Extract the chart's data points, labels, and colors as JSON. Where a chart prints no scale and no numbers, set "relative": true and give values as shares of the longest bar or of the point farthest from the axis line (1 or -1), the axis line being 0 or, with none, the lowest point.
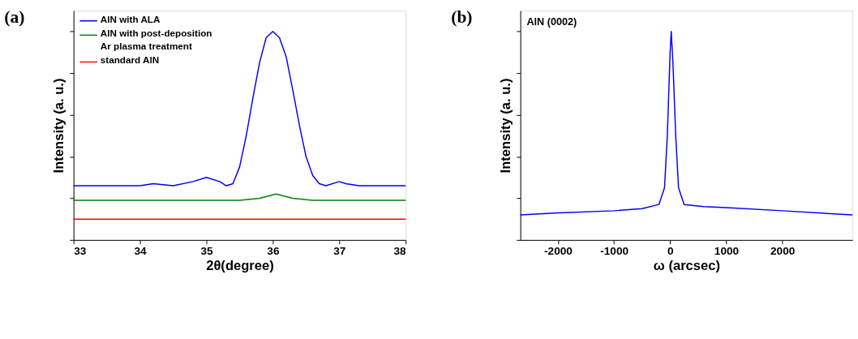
{
  "chart_data": [
    {
      "type": "line",
      "title": "(a)",
      "xlabel": "2θ(degree)",
      "ylabel": "Intensity (a. u.)",
      "relative": true,
      "tick_labels": "x",
      "grid": false,
      "legend": "top left",
      "xlim": [
        33,
        38
      ],
      "xticks": [
        33,
        34,
        35,
        36,
        37,
        38
      ],
      "series": [
        {
          "name": "AlN with ALA",
          "color": "#0000ff",
          "x": [
            33,
            34,
            34.2,
            34.5,
            34.8,
            35,
            35.2,
            35.3,
            35.4,
            35.5,
            35.6,
            35.7,
            35.8,
            35.9,
            36,
            36.1,
            36.2,
            36.3,
            36.4,
            36.5,
            36.6,
            36.7,
            36.8,
            37,
            37.1,
            37.3,
            38
          ],
          "values": [
            0.26,
            0.26,
            0.27,
            0.26,
            0.28,
            0.3,
            0.28,
            0.26,
            0.27,
            0.35,
            0.5,
            0.68,
            0.85,
            0.97,
            1.0,
            0.97,
            0.88,
            0.72,
            0.55,
            0.4,
            0.31,
            0.27,
            0.26,
            0.28,
            0.27,
            0.26,
            0.26
          ]
        },
        {
          "name": "AlN with post-deposition Ar plasma treatment",
          "color": "#008000",
          "x": [
            33,
            35.5,
            35.8,
            36.05,
            36.3,
            36.6,
            38
          ],
          "values": [
            0.19,
            0.19,
            0.2,
            0.22,
            0.2,
            0.19,
            0.19
          ]
        },
        {
          "name": "standard AlN",
          "color": "#ff0000",
          "x": [
            33,
            38
          ],
          "values": [
            0.1,
            0.1
          ]
        }
      ]
    },
    {
      "type": "line",
      "title": "(b)",
      "xlabel": "ω (arcsec)",
      "ylabel": "Intensity (a. u.)",
      "relative": true,
      "tick_labels": "x",
      "grid": false,
      "xlim": [
        -2670,
        3250
      ],
      "xticks": [
        -2000,
        -1000,
        0,
        1000,
        2000
      ],
      "annotations": [
        "AlN (0002)"
      ],
      "series": [
        {
          "color": "#0000ff",
          "x": [
            -2670,
            -2000,
            -1000,
            -500,
            -200,
            -100,
            -50,
            0,
            20,
            50,
            100,
            150,
            250,
            600,
            1000,
            2000,
            3250
          ],
          "values": [
            0.12,
            0.13,
            0.14,
            0.15,
            0.17,
            0.25,
            0.5,
            0.9,
            1.0,
            0.85,
            0.5,
            0.25,
            0.17,
            0.16,
            0.155,
            0.14,
            0.12
          ]
        }
      ]
    }
  ]
}
